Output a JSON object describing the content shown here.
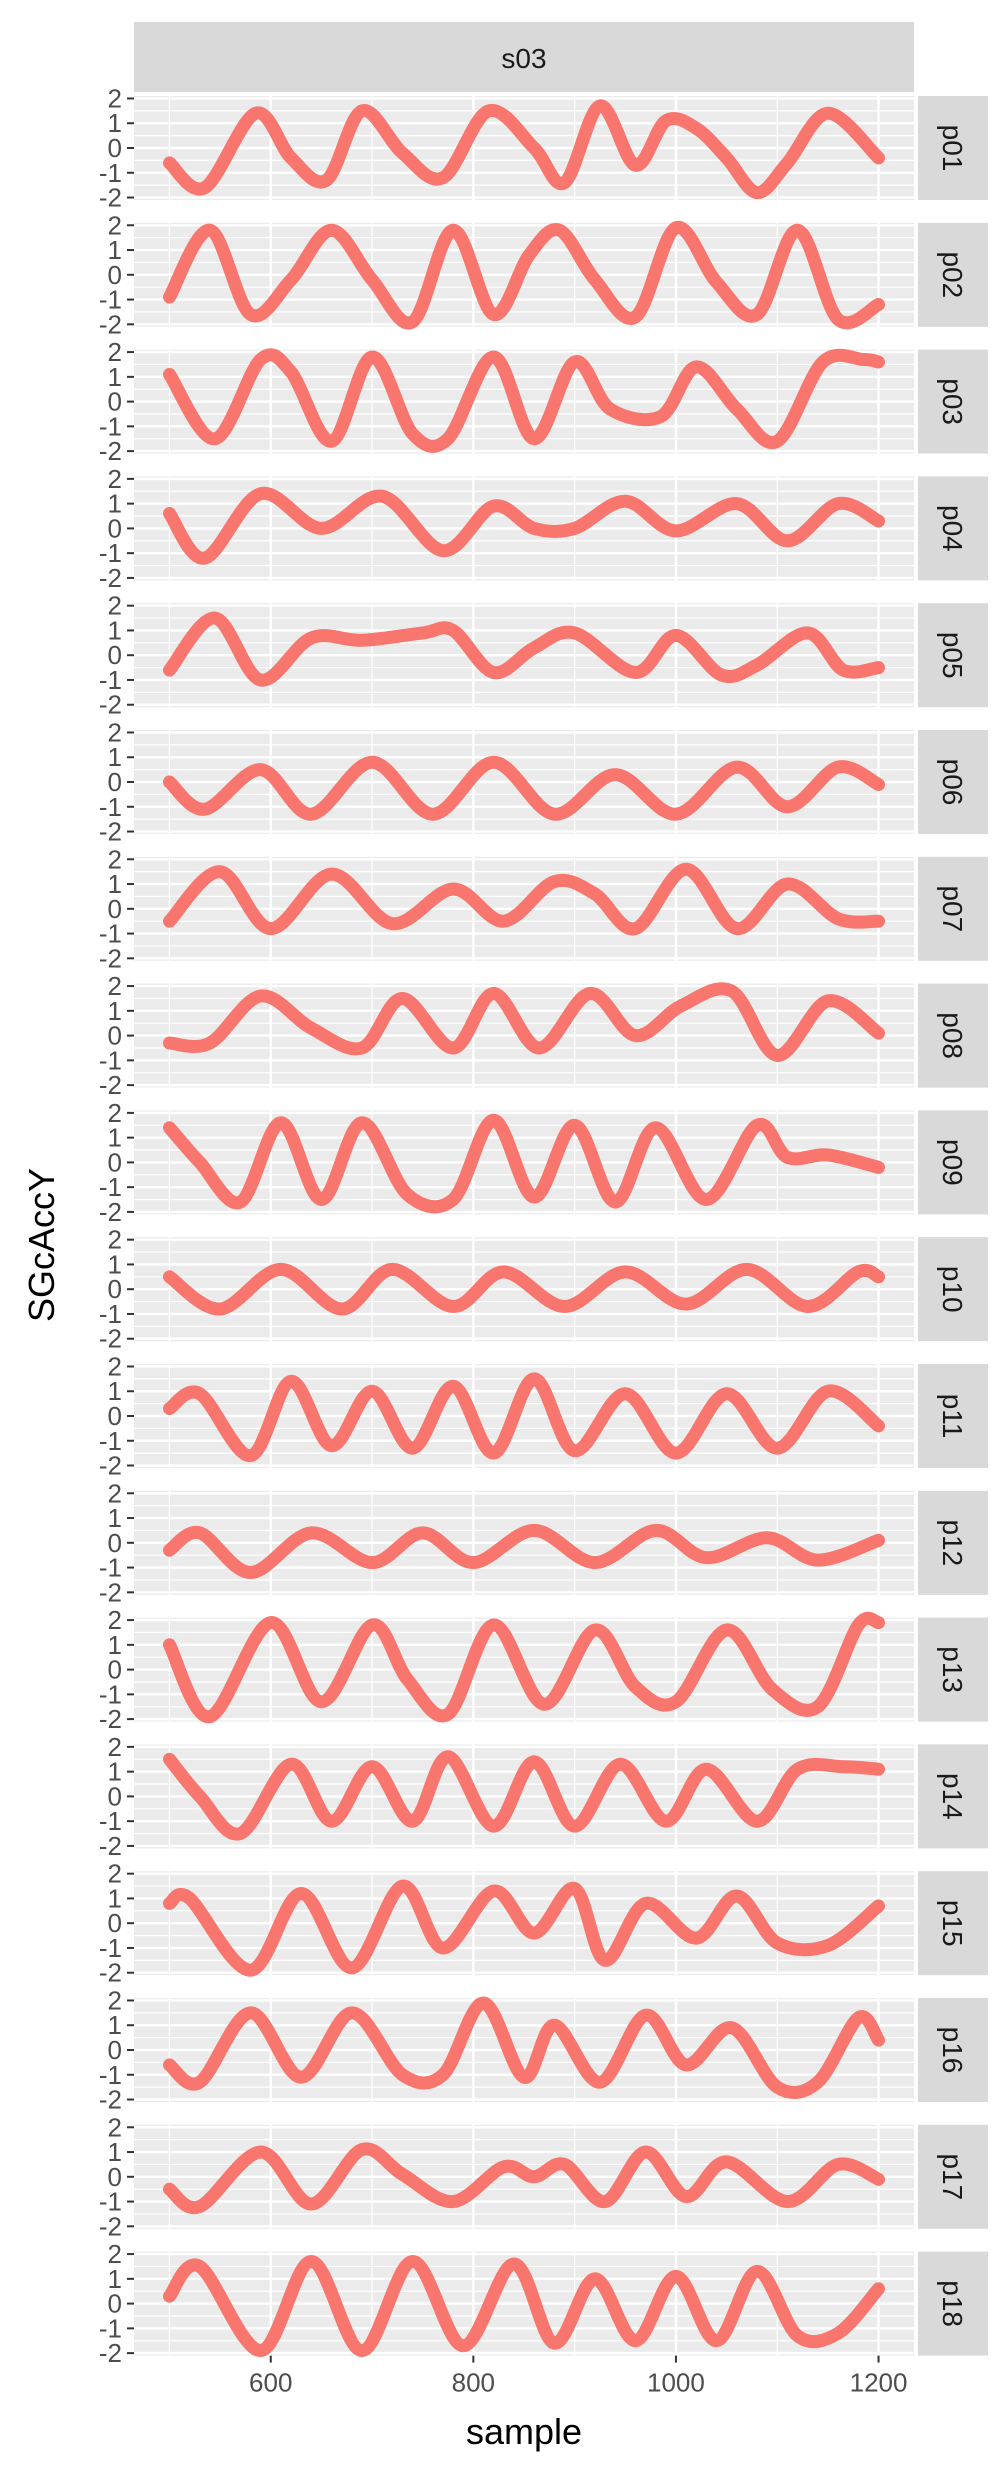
{
  "chart_data": {
    "type": "line",
    "facet_column": "s03",
    "xlabel": "sample",
    "ylabel": "SGcAccY",
    "xlim": [
      465,
      1235
    ],
    "ylim": [
      -2.1,
      2.1
    ],
    "x_ticks": [
      600,
      800,
      1000,
      1200
    ],
    "x_tick_labels": [
      "600",
      "800",
      "1000",
      "1200"
    ],
    "y_ticks": [
      -2,
      -1,
      0,
      1,
      2
    ],
    "y_tick_labels": [
      "-2",
      "-1",
      "0",
      "1",
      "2"
    ],
    "grid": true,
    "legend": "none",
    "line_color": "#F8766D",
    "panels": [
      {
        "name": "p01",
        "x": [
          500,
          535,
          585,
          620,
          655,
          690,
          730,
          770,
          815,
          860,
          890,
          925,
          960,
          990,
          1020,
          1050,
          1080,
          1110,
          1150,
          1200
        ],
        "y": [
          -0.6,
          -1.6,
          1.4,
          -0.4,
          -1.3,
          1.5,
          -0.2,
          -1.2,
          1.5,
          0.0,
          -1.4,
          1.7,
          -0.7,
          1.1,
          0.8,
          -0.4,
          -1.8,
          -0.6,
          1.4,
          -0.4
        ]
      },
      {
        "name": "p02",
        "x": [
          500,
          540,
          580,
          620,
          660,
          700,
          740,
          780,
          820,
          855,
          885,
          920,
          960,
          1000,
          1040,
          1080,
          1120,
          1160,
          1200
        ],
        "y": [
          -0.9,
          1.8,
          -1.6,
          -0.2,
          1.8,
          -0.2,
          -1.9,
          1.8,
          -1.6,
          0.8,
          1.8,
          -0.2,
          -1.7,
          1.9,
          -0.3,
          -1.6,
          1.8,
          -1.8,
          -1.2
        ]
      },
      {
        "name": "p03",
        "x": [
          500,
          545,
          590,
          620,
          660,
          700,
          740,
          775,
          820,
          860,
          900,
          935,
          985,
          1020,
          1060,
          1100,
          1145,
          1185,
          1200
        ],
        "y": [
          1.1,
          -1.5,
          1.7,
          1.2,
          -1.6,
          1.8,
          -1.3,
          -1.5,
          1.8,
          -1.5,
          1.6,
          -0.3,
          -0.6,
          1.4,
          -0.3,
          -1.6,
          1.6,
          1.7,
          1.6
        ]
      },
      {
        "name": "p04",
        "x": [
          500,
          535,
          590,
          650,
          710,
          770,
          820,
          860,
          900,
          950,
          1000,
          1060,
          1110,
          1160,
          1200
        ],
        "y": [
          0.6,
          -1.2,
          1.4,
          0.0,
          1.3,
          -0.9,
          0.9,
          0.0,
          0.0,
          1.1,
          -0.1,
          1.0,
          -0.5,
          1.0,
          0.3
        ]
      },
      {
        "name": "p05",
        "x": [
          500,
          545,
          590,
          640,
          690,
          750,
          780,
          820,
          860,
          900,
          960,
          1000,
          1045,
          1080,
          1130,
          1165,
          1200
        ],
        "y": [
          -0.6,
          1.5,
          -1.0,
          0.7,
          0.6,
          0.9,
          1.0,
          -0.7,
          0.3,
          0.9,
          -0.7,
          0.8,
          -0.8,
          -0.4,
          0.9,
          -0.6,
          -0.5
        ]
      },
      {
        "name": "p06",
        "x": [
          500,
          535,
          590,
          640,
          700,
          760,
          820,
          880,
          940,
          1000,
          1060,
          1110,
          1160,
          1200
        ],
        "y": [
          0.0,
          -1.1,
          0.5,
          -1.3,
          0.8,
          -1.3,
          0.8,
          -1.3,
          0.3,
          -1.3,
          0.6,
          -1.0,
          0.6,
          -0.1
        ]
      },
      {
        "name": "p07",
        "x": [
          500,
          550,
          600,
          660,
          720,
          780,
          830,
          880,
          920,
          960,
          1010,
          1060,
          1110,
          1160,
          1200
        ],
        "y": [
          -0.5,
          1.5,
          -0.8,
          1.4,
          -0.6,
          0.8,
          -0.5,
          1.1,
          0.6,
          -0.8,
          1.6,
          -0.8,
          1.0,
          -0.4,
          -0.5
        ]
      },
      {
        "name": "p08",
        "x": [
          500,
          540,
          590,
          640,
          690,
          730,
          780,
          820,
          865,
          915,
          960,
          1005,
          1055,
          1100,
          1150,
          1200
        ],
        "y": [
          -0.3,
          -0.3,
          1.6,
          0.3,
          -0.5,
          1.5,
          -0.5,
          1.7,
          -0.5,
          1.7,
          0.0,
          1.2,
          1.8,
          -0.8,
          1.4,
          0.1
        ]
      },
      {
        "name": "p09",
        "x": [
          500,
          530,
          570,
          610,
          650,
          690,
          735,
          780,
          820,
          860,
          900,
          940,
          980,
          1030,
          1080,
          1110,
          1150,
          1200
        ],
        "y": [
          1.4,
          0.0,
          -1.6,
          1.6,
          -1.5,
          1.6,
          -1.3,
          -1.5,
          1.7,
          -1.4,
          1.5,
          -1.6,
          1.4,
          -1.5,
          1.5,
          0.2,
          0.3,
          -0.2
        ]
      },
      {
        "name": "p10",
        "x": [
          500,
          550,
          610,
          670,
          720,
          780,
          830,
          890,
          950,
          1010,
          1070,
          1130,
          1180,
          1200
        ],
        "y": [
          0.5,
          -0.8,
          0.8,
          -0.8,
          0.8,
          -0.7,
          0.7,
          -0.7,
          0.7,
          -0.6,
          0.8,
          -0.7,
          0.7,
          0.5
        ]
      },
      {
        "name": "p11",
        "x": [
          500,
          530,
          580,
          620,
          660,
          700,
          740,
          780,
          820,
          860,
          900,
          950,
          1000,
          1050,
          1100,
          1150,
          1200
        ],
        "y": [
          0.3,
          0.9,
          -1.6,
          1.4,
          -1.2,
          1.0,
          -1.3,
          1.2,
          -1.5,
          1.5,
          -1.4,
          0.9,
          -1.5,
          0.9,
          -1.3,
          1.0,
          -0.4
        ]
      },
      {
        "name": "p12",
        "x": [
          500,
          530,
          580,
          640,
          700,
          750,
          800,
          860,
          920,
          980,
          1030,
          1090,
          1140,
          1200
        ],
        "y": [
          -0.3,
          0.4,
          -1.2,
          0.4,
          -0.8,
          0.4,
          -0.8,
          0.5,
          -0.8,
          0.5,
          -0.6,
          0.2,
          -0.7,
          0.1
        ]
      },
      {
        "name": "p13",
        "x": [
          500,
          540,
          600,
          650,
          700,
          735,
          775,
          820,
          870,
          920,
          960,
          1000,
          1050,
          1095,
          1140,
          1180,
          1200
        ],
        "y": [
          1.0,
          -1.9,
          1.9,
          -1.3,
          1.8,
          -0.4,
          -1.8,
          1.8,
          -1.4,
          1.6,
          -0.7,
          -1.3,
          1.6,
          -0.8,
          -1.5,
          1.8,
          1.9
        ]
      },
      {
        "name": "p14",
        "x": [
          500,
          530,
          570,
          620,
          660,
          700,
          740,
          775,
          820,
          860,
          900,
          945,
          990,
          1030,
          1080,
          1120,
          1165,
          1200
        ],
        "y": [
          1.5,
          0.0,
          -1.5,
          1.3,
          -1.0,
          1.2,
          -1.0,
          1.6,
          -1.2,
          1.4,
          -1.2,
          1.3,
          -1.0,
          1.1,
          -1.0,
          1.1,
          1.2,
          1.1
        ]
      },
      {
        "name": "p15",
        "x": [
          500,
          520,
          580,
          630,
          680,
          730,
          770,
          820,
          860,
          900,
          930,
          970,
          1020,
          1060,
          1100,
          1150,
          1200
        ],
        "y": [
          0.8,
          1.0,
          -1.9,
          1.2,
          -1.8,
          1.5,
          -1.0,
          1.3,
          -0.4,
          1.4,
          -1.5,
          0.8,
          -0.6,
          1.1,
          -0.8,
          -0.9,
          0.7
        ]
      },
      {
        "name": "p16",
        "x": [
          500,
          530,
          580,
          630,
          680,
          730,
          770,
          810,
          850,
          880,
          925,
          970,
          1010,
          1055,
          1100,
          1140,
          1180,
          1200
        ],
        "y": [
          -0.6,
          -1.3,
          1.5,
          -1.1,
          1.5,
          -1.0,
          -1.0,
          1.9,
          -1.1,
          1.0,
          -1.3,
          1.4,
          -0.6,
          0.9,
          -1.5,
          -1.3,
          1.3,
          0.4
        ]
      },
      {
        "name": "p17",
        "x": [
          500,
          530,
          590,
          640,
          690,
          730,
          780,
          830,
          860,
          890,
          930,
          970,
          1010,
          1050,
          1110,
          1160,
          1200
        ],
        "y": [
          -0.5,
          -1.2,
          1.0,
          -1.1,
          1.1,
          0.1,
          -1.0,
          0.4,
          0.0,
          0.5,
          -1.0,
          1.0,
          -0.8,
          0.6,
          -1.0,
          0.5,
          -0.1
        ]
      },
      {
        "name": "p18",
        "x": [
          500,
          530,
          590,
          640,
          690,
          740,
          790,
          840,
          880,
          920,
          960,
          1000,
          1040,
          1080,
          1120,
          1160,
          1200
        ],
        "y": [
          0.3,
          1.5,
          -1.9,
          1.7,
          -1.9,
          1.7,
          -1.7,
          1.6,
          -1.6,
          1.0,
          -1.5,
          1.1,
          -1.5,
          1.3,
          -1.3,
          -1.2,
          0.6
        ]
      }
    ]
  }
}
